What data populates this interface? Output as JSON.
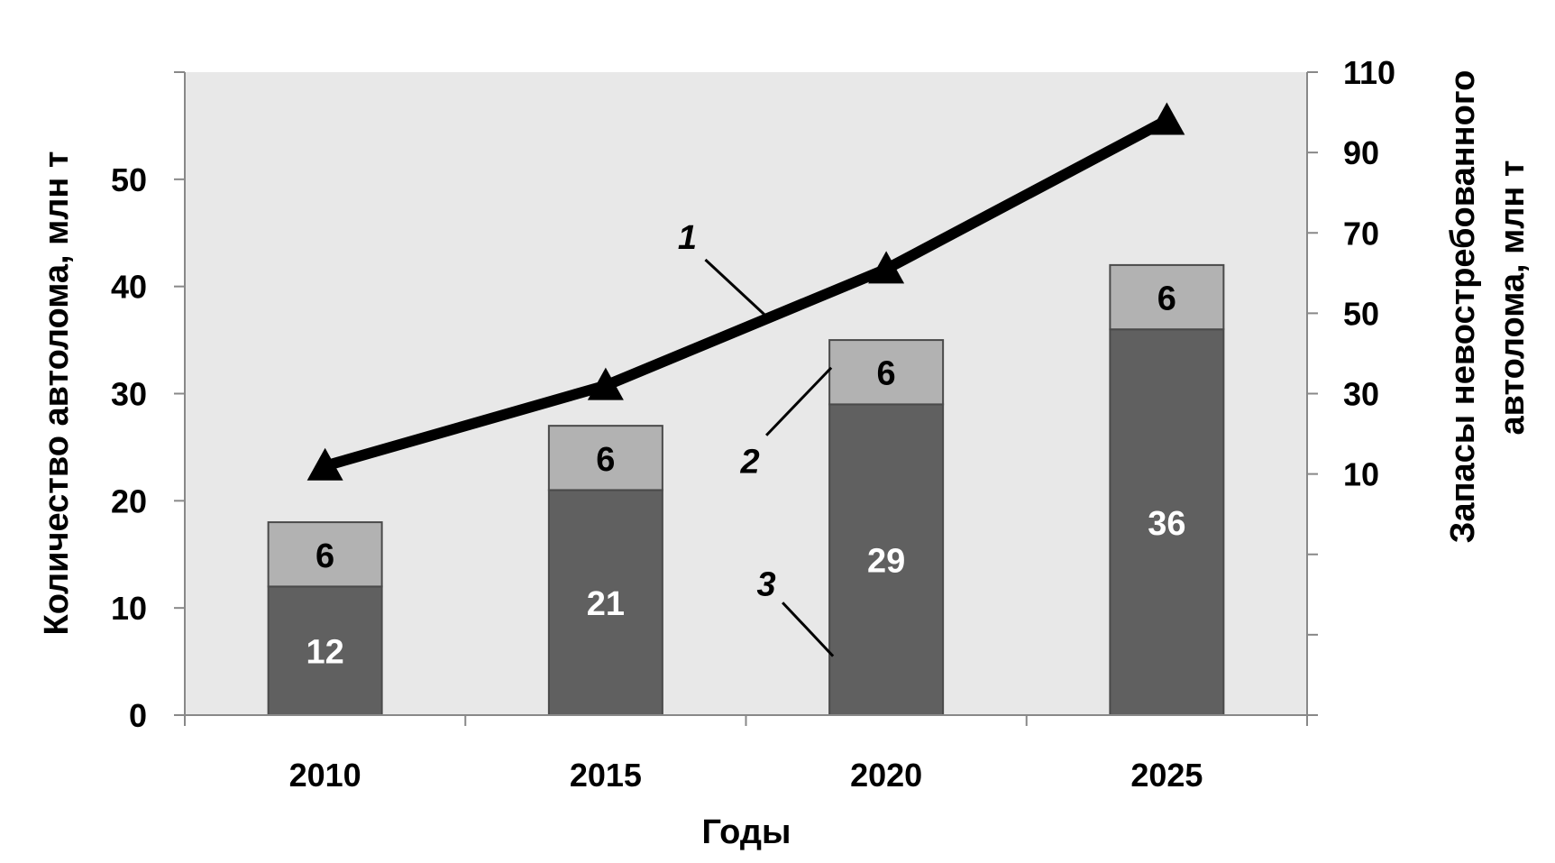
{
  "chart_data": {
    "type": "bar",
    "categories": [
      "2010",
      "2015",
      "2020",
      "2025"
    ],
    "series": [
      {
        "values": [
          12,
          21,
          29,
          36
        ],
        "color": "#606060",
        "label_color": "#ffffff",
        "axis": "left"
      },
      {
        "values": [
          6,
          6,
          6,
          6
        ],
        "color": "#b2b2b2",
        "label_color": "#000000",
        "axis": "left"
      },
      {
        "type": "line",
        "values": [
          12,
          32,
          61,
          98
        ],
        "color": "#000000",
        "marker": "triangle",
        "axis": "right"
      }
    ],
    "xlabel": "Годы",
    "ylabel": "Количество автолома, млн т",
    "y2label_lines": [
      "Запасы невостребованного",
      "автолома, млн т"
    ],
    "ylim": [
      0,
      60
    ],
    "yticks": [
      0,
      10,
      20,
      30,
      40,
      50
    ],
    "y2lim": [
      -50,
      110
    ],
    "y2ticks": [
      -50,
      -30,
      -10,
      10,
      30,
      50,
      70,
      90,
      110
    ],
    "y2tick_labels": [
      "",
      "",
      "",
      "10",
      "30",
      "50",
      "70",
      "90",
      "110"
    ],
    "annotations": [
      {
        "text": "1",
        "target": "line"
      },
      {
        "text": "2",
        "target": "bar-top"
      },
      {
        "text": "3",
        "target": "bar-bottom"
      }
    ],
    "plot_background": "#e8e8e8",
    "grid": false,
    "legend": "none"
  }
}
